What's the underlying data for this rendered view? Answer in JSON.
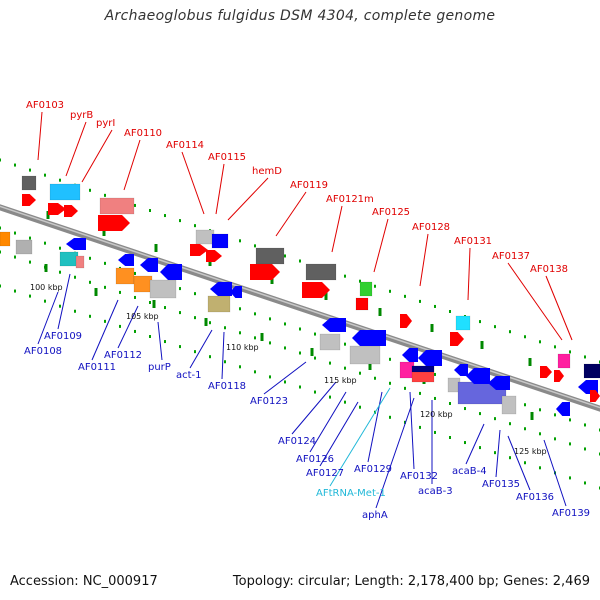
{
  "title": "Archaeoglobus fulgidus DSM 4304, complete genome",
  "footer": {
    "accession": "Accession: NC_000917",
    "info": "Topology: circular; Length: 2,178,400 bp; Genes: 2,469"
  },
  "colors": {
    "forward_label": "#e00000",
    "reverse_label": "#1010c0",
    "trna_label": "#20b8d8",
    "backbone": "#8a8a8a",
    "tick": "#00a000"
  },
  "positions_kbp": [
    "100 kbp",
    "105 kbp",
    "110 kbp",
    "115 kbp",
    "120 kbp",
    "125 kbp"
  ],
  "forward_genes": [
    "AF0103",
    "pyrB",
    "pyrI",
    "AF0110",
    "AF0114",
    "AF0115",
    "hemD",
    "AF0119",
    "AF0121m",
    "AF0125",
    "AF0128",
    "AF0131",
    "AF0137",
    "AF0138"
  ],
  "reverse_genes": [
    "AF0108",
    "AF0109",
    "AF0111",
    "AF0112",
    "purP",
    "act-1",
    "AF0118",
    "AF0123",
    "AF0124",
    "AF0126",
    "AF0127",
    "AF0129",
    "AFtRNA-Met-1",
    "aphA",
    "AF0132",
    "acaB-3",
    "acaB-4",
    "AF0135",
    "AF0136",
    "AF0139"
  ]
}
